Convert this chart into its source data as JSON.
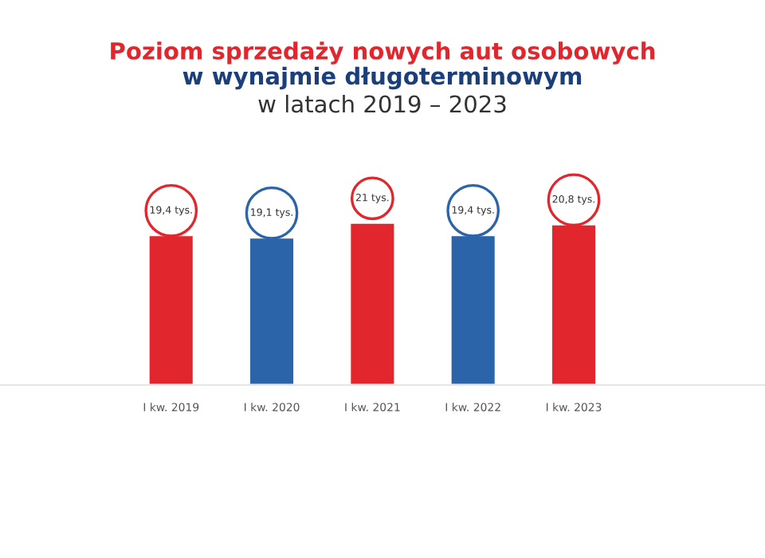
{
  "chart_data": {
    "type": "bar",
    "title": "Poziom sprzedaży nowych aut osobowych",
    "subtitle": "w wynajmie długoterminowym\nw latach 2019 – 2023",
    "categories": [
      "I kw. 2019",
      "I kw. 2020",
      "I kw. 2021",
      "I kw. 2022",
      "I kw. 2023"
    ],
    "values": [
      19.4,
      19.1,
      21,
      19.4,
      20.8
    ],
    "value_labels": [
      "19,4 tys.",
      "19,1 tys.",
      "21 tys.",
      "19,4 tys.",
      "20,8 tys."
    ],
    "colors": [
      "#e2262d",
      "#2b64a8",
      "#e2262d",
      "#2b64a8",
      "#e2262d"
    ],
    "tick_labels": "x"
  }
}
